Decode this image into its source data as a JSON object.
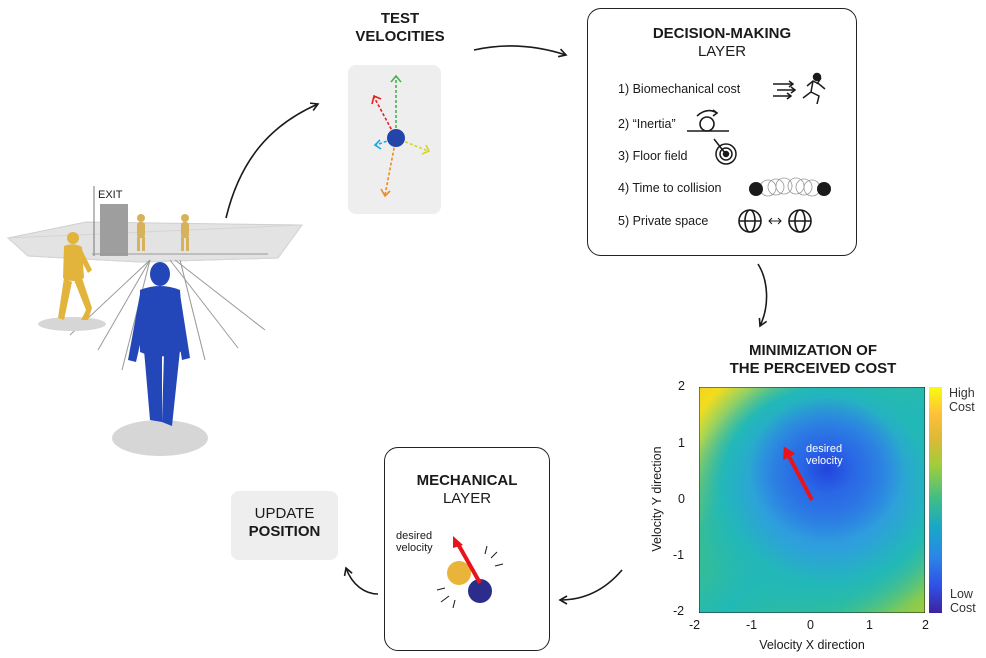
{
  "scene": {
    "exit_sign": "EXIT"
  },
  "test_velocities": {
    "title_line1": "TEST",
    "title_line2": "VELOCITIES"
  },
  "decision_layer": {
    "title_bold": "DECISION-MAKING",
    "title_regular": "LAYER",
    "items": [
      {
        "label": "1)  Biomechanical cost",
        "icon": "runner-icon"
      },
      {
        "label": "2)  “Inertia”",
        "icon": "inertia-icon"
      },
      {
        "label": "3)  Floor field",
        "icon": "target-icon"
      },
      {
        "label": "4)  Time to collision",
        "icon": "collision-icon"
      },
      {
        "label": "5)  Private space",
        "icon": "private-space-icon"
      }
    ]
  },
  "minimization": {
    "title_line1": "MINIMIZATION OF",
    "title_line2": "THE PERCEIVED COST"
  },
  "chart_data": {
    "type": "heatmap",
    "xlabel": "Velocity X direction",
    "ylabel": "Velocity Y direction",
    "xlim": [
      -2,
      2
    ],
    "ylim": [
      -2,
      2
    ],
    "x_ticks": [
      "-2",
      "-1",
      "0",
      "1",
      "2"
    ],
    "y_ticks": [
      "2",
      "1",
      "0",
      "-1",
      "-2"
    ],
    "annotation": [
      "desired",
      "velocity"
    ],
    "desired_velocity_vector": {
      "from": [
        0,
        0
      ],
      "to": [
        -0.5,
        0.95
      ]
    },
    "colorbar_high": [
      "High",
      "Cost"
    ],
    "colorbar_low": [
      "Low",
      "Cost"
    ],
    "colors": {
      "low": "#3c23a0",
      "high": "#f9fb0e",
      "arrow": "#e8141c"
    }
  },
  "mechanical_layer": {
    "title_bold": "MECHANICAL",
    "title_regular": "LAYER",
    "annotation_line1": "desired",
    "annotation_line2": "velocity",
    "colors": {
      "agent_yellow": "#e8b43a",
      "agent_blue": "#2c2c8a",
      "arrow": "#e8141c"
    }
  },
  "update_position": {
    "line1": "UPDATE",
    "line2": "POSITION"
  }
}
